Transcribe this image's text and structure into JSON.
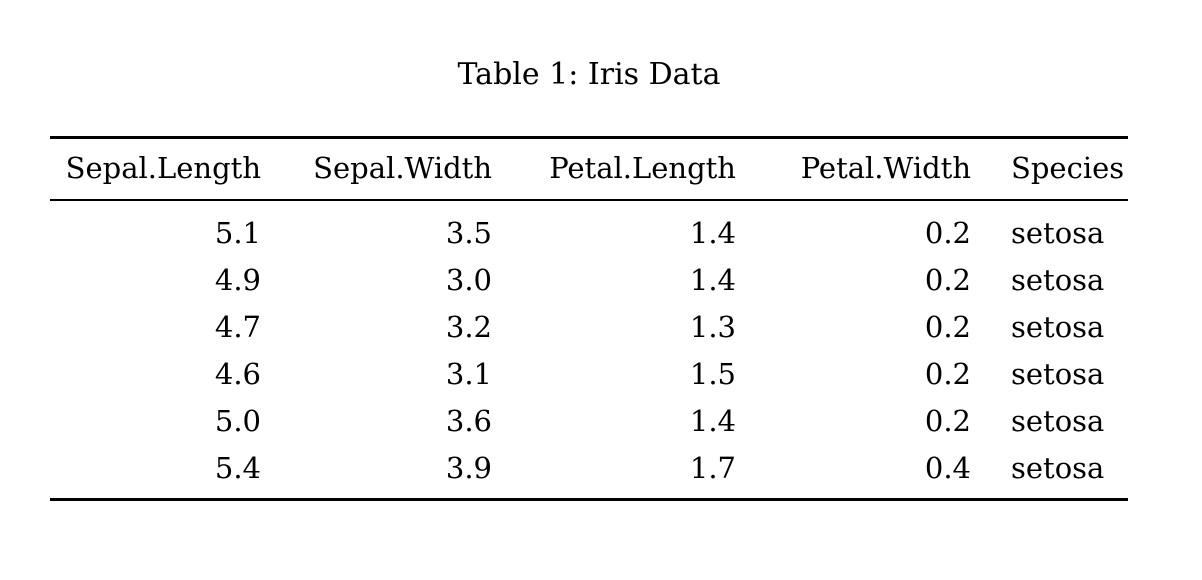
{
  "page": {
    "background_color": "#ffffff",
    "text_color": "#000000"
  },
  "caption": "Table 1: Iris Data",
  "table": {
    "style": "latex-booktabs",
    "headers": [
      "Sepal.Length",
      "Sepal.Width",
      "Petal.Length",
      "Petal.Width",
      "Species"
    ],
    "rows": [
      [
        "5.1",
        "3.5",
        "1.4",
        "0.2",
        "setosa"
      ],
      [
        "4.9",
        "3.0",
        "1.4",
        "0.2",
        "setosa"
      ],
      [
        "4.7",
        "3.2",
        "1.3",
        "0.2",
        "setosa"
      ],
      [
        "4.6",
        "3.1",
        "1.5",
        "0.2",
        "setosa"
      ],
      [
        "5.0",
        "3.6",
        "1.4",
        "0.2",
        "setosa"
      ],
      [
        "5.4",
        "3.9",
        "1.7",
        "0.4",
        "setosa"
      ]
    ]
  }
}
